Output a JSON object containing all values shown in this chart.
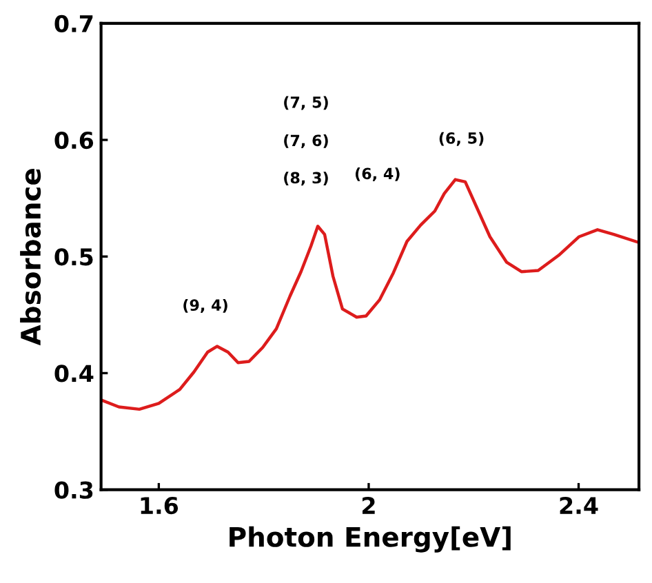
{
  "chart_data": {
    "type": "line",
    "xlabel": "Photon Energy[eV]",
    "ylabel": "Absorbance",
    "xlim": [
      1.49,
      2.515
    ],
    "ylim": [
      0.3,
      0.7
    ],
    "xticks": [
      1.6,
      2,
      2.4
    ],
    "yticks": [
      0.3,
      0.4,
      0.5,
      0.6,
      0.7
    ],
    "grid": false,
    "legend": false,
    "marker": "none",
    "line_style": "solid",
    "series": [
      {
        "color": "#dd1c1c",
        "x": [
          1.49,
          1.524,
          1.563,
          1.6,
          1.64,
          1.667,
          1.693,
          1.711,
          1.732,
          1.751,
          1.772,
          1.798,
          1.824,
          1.85,
          1.871,
          1.89,
          1.903,
          1.916,
          1.932,
          1.95,
          1.977,
          1.995,
          2.021,
          2.047,
          2.073,
          2.099,
          2.126,
          2.144,
          2.165,
          2.184,
          2.205,
          2.231,
          2.263,
          2.291,
          2.323,
          2.362,
          2.401,
          2.436,
          2.467,
          2.515
        ],
        "values": [
          0.377,
          0.371,
          0.369,
          0.374,
          0.386,
          0.401,
          0.418,
          0.423,
          0.418,
          0.409,
          0.41,
          0.422,
          0.438,
          0.466,
          0.487,
          0.509,
          0.526,
          0.519,
          0.483,
          0.455,
          0.448,
          0.449,
          0.463,
          0.486,
          0.513,
          0.527,
          0.539,
          0.554,
          0.566,
          0.564,
          0.543,
          0.517,
          0.495,
          0.487,
          0.488,
          0.501,
          0.517,
          0.523,
          0.519,
          0.512
        ]
      }
    ],
    "annotations": [
      "(9, 4)",
      "(7, 5)",
      "(7, 6)",
      "(8, 3)",
      "(6, 4)",
      "(6, 5)"
    ]
  }
}
